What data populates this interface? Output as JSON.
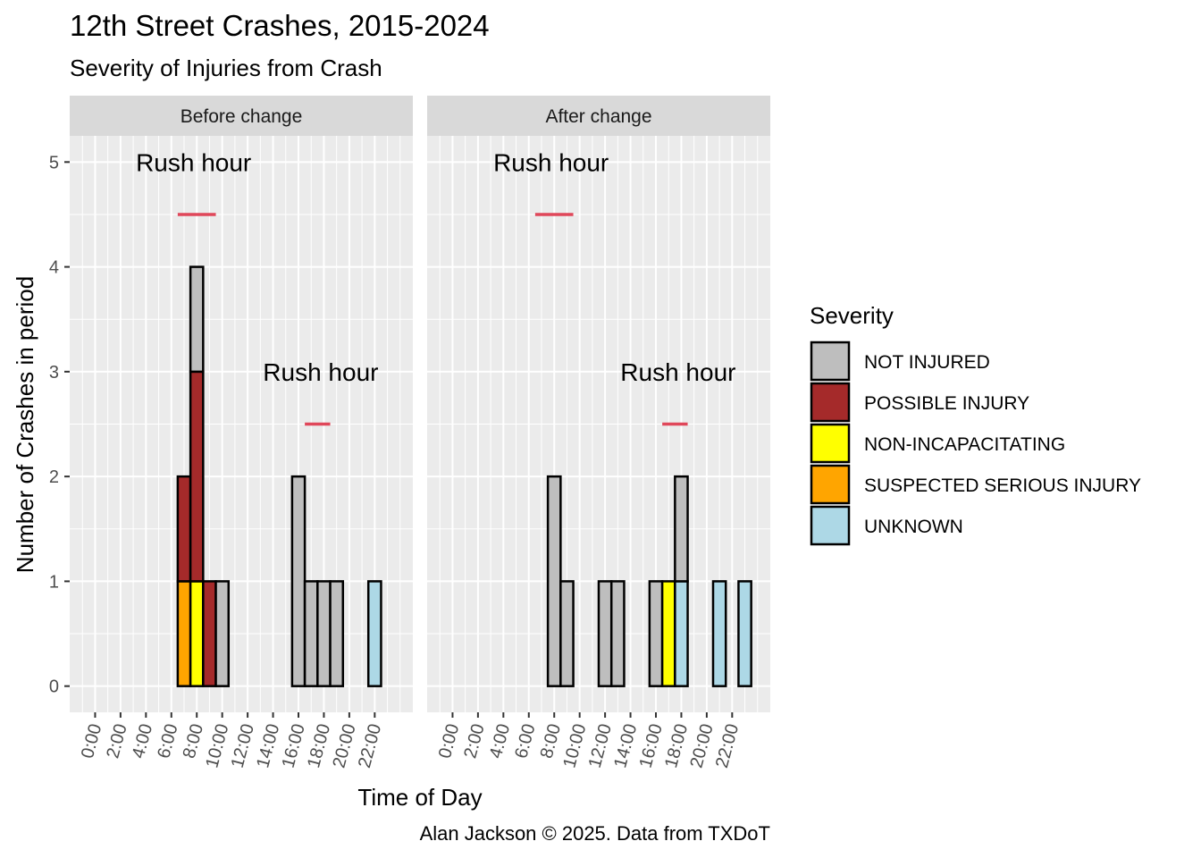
{
  "chart_data": {
    "type": "bar",
    "title": "12th Street Crashes, 2015-2024",
    "subtitle": "Severity of Injuries from Crash",
    "xlabel": "Time of Day",
    "ylabel": "Number of Crashes in period",
    "caption": "Alan Jackson © 2025. Data from TXDoT",
    "xlim": [
      -2,
      25
    ],
    "ylim": [
      -0.25,
      5.25
    ],
    "y_ticks": [
      0,
      1,
      2,
      3,
      4,
      5
    ],
    "x_ticks": [
      {
        "hour": 0,
        "label": "0:00"
      },
      {
        "hour": 2,
        "label": "2:00"
      },
      {
        "hour": 4,
        "label": "4:00"
      },
      {
        "hour": 6,
        "label": "6:00"
      },
      {
        "hour": 8,
        "label": "8:00"
      },
      {
        "hour": 10,
        "label": "10:00"
      },
      {
        "hour": 12,
        "label": "12:00"
      },
      {
        "hour": 14,
        "label": "14:00"
      },
      {
        "hour": 16,
        "label": "16:00"
      },
      {
        "hour": 18,
        "label": "18:00"
      },
      {
        "hour": 20,
        "label": "20:00"
      },
      {
        "hour": 22,
        "label": "22:00"
      }
    ],
    "legend": {
      "title": "Severity",
      "position": "right",
      "entries": [
        {
          "name": "NOT INJURED",
          "color": "#BEBEBE"
        },
        {
          "name": "POSSIBLE INJURY",
          "color": "#A52A2A"
        },
        {
          "name": "NON-INCAPACITATING",
          "color": "#FFFF00"
        },
        {
          "name": "SUSPECTED SERIOUS INJURY",
          "color": "#FFA500"
        },
        {
          "name": "UNKNOWN",
          "color": "#ADD8E6"
        }
      ]
    },
    "stack_order": [
      "SUSPECTED SERIOUS INJURY",
      "NON-INCAPACITATING",
      "UNKNOWN",
      "POSSIBLE INJURY",
      "NOT INJURED"
    ],
    "annotation_color": "#E0475A",
    "annotations": [
      {
        "label": "Rush hour",
        "text_x": 7.75,
        "text_y": 5.0,
        "x_start": 6.5,
        "x_end": 9.5,
        "y": 4.5
      },
      {
        "label": "Rush hour",
        "text_x": 17.75,
        "text_y": 3.0,
        "x_start": 16.5,
        "x_end": 18.5,
        "y": 2.5
      }
    ],
    "panels": [
      {
        "label": "Before change",
        "bars": [
          {
            "hour": 7,
            "counts": {
              "SUSPECTED SERIOUS INJURY": 1,
              "POSSIBLE INJURY": 1
            }
          },
          {
            "hour": 8,
            "counts": {
              "NON-INCAPACITATING": 1,
              "POSSIBLE INJURY": 2,
              "NOT INJURED": 1
            }
          },
          {
            "hour": 9,
            "counts": {
              "POSSIBLE INJURY": 1
            }
          },
          {
            "hour": 10,
            "counts": {
              "NOT INJURED": 1
            }
          },
          {
            "hour": 16,
            "counts": {
              "NOT INJURED": 2
            }
          },
          {
            "hour": 17,
            "counts": {
              "NOT INJURED": 1
            }
          },
          {
            "hour": 18,
            "counts": {
              "NOT INJURED": 1
            }
          },
          {
            "hour": 19,
            "counts": {
              "NOT INJURED": 1
            }
          },
          {
            "hour": 22,
            "counts": {
              "UNKNOWN": 1
            }
          }
        ]
      },
      {
        "label": "After change",
        "bars": [
          {
            "hour": 8,
            "counts": {
              "NOT INJURED": 2
            }
          },
          {
            "hour": 9,
            "counts": {
              "NOT INJURED": 1
            }
          },
          {
            "hour": 12,
            "counts": {
              "NOT INJURED": 1
            }
          },
          {
            "hour": 13,
            "counts": {
              "NOT INJURED": 1
            }
          },
          {
            "hour": 16,
            "counts": {
              "NOT INJURED": 1
            }
          },
          {
            "hour": 17,
            "counts": {
              "NON-INCAPACITATING": 1
            }
          },
          {
            "hour": 18,
            "counts": {
              "UNKNOWN": 1,
              "NOT INJURED": 1
            }
          },
          {
            "hour": 21,
            "counts": {
              "UNKNOWN": 1
            }
          },
          {
            "hour": 23,
            "counts": {
              "UNKNOWN": 1
            }
          }
        ]
      }
    ]
  }
}
